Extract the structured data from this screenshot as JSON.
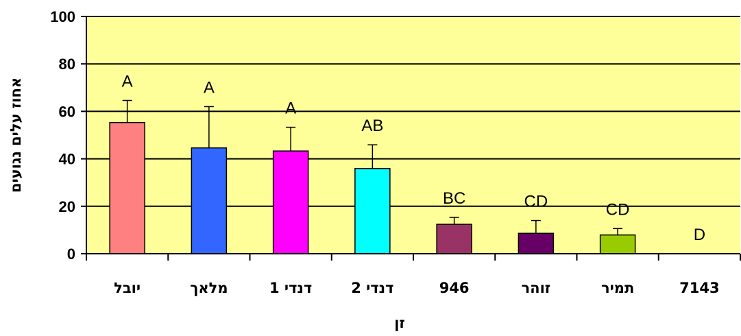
{
  "chart_data": {
    "type": "bar",
    "title": "",
    "xlabel": "זן",
    "ylabel": "אחוז עלים נגועים",
    "ylim": [
      0,
      100
    ],
    "yticks": [
      0,
      20,
      40,
      60,
      80,
      100
    ],
    "grid": true,
    "plot_background": "#FFFF99",
    "categories": [
      "יובל",
      "מלאך",
      "דנדי 1",
      "דנדי 2",
      "946",
      "זוהר",
      "תמיר",
      "7143"
    ],
    "values": [
      55.3,
      44.6,
      43.3,
      35.9,
      12.4,
      8.6,
      7.9,
      0
    ],
    "error_upper": [
      9.3,
      17.4,
      10.0,
      10.0,
      2.9,
      5.4,
      2.7,
      0
    ],
    "significance_labels": [
      "A",
      "A",
      "A",
      "AB",
      "BC",
      "CD",
      "CD",
      "D"
    ],
    "colors": [
      "#FF8080",
      "#3366FF",
      "#FF00FF",
      "#00FFFF",
      "#993366",
      "#660066",
      "#99CC00",
      "#FFFF99"
    ]
  }
}
